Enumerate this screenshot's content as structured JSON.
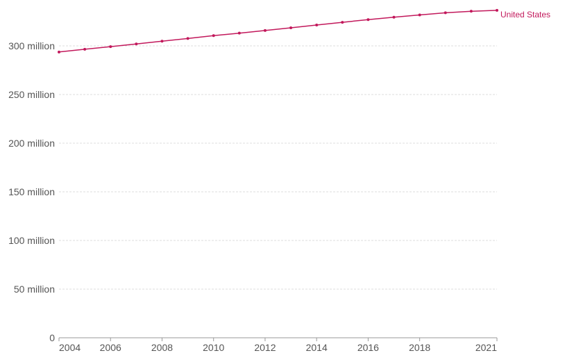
{
  "chart_data": {
    "type": "line",
    "title": "",
    "xlabel": "",
    "ylabel": "",
    "x": [
      2004,
      2005,
      2006,
      2007,
      2008,
      2009,
      2010,
      2011,
      2012,
      2013,
      2014,
      2015,
      2016,
      2017,
      2018,
      2019,
      2020,
      2021
    ],
    "series": [
      {
        "name": "United States",
        "color": "#c2185b",
        "values": [
          293.7,
          296.5,
          299.2,
          302.0,
          304.8,
          307.6,
          310.5,
          313.1,
          315.8,
          318.6,
          321.4,
          324.2,
          327.0,
          329.5,
          331.8,
          334.0,
          335.6,
          336.5
        ]
      }
    ],
    "xlim": [
      2004,
      2021
    ],
    "ylim": [
      0,
      335
    ],
    "x_ticks": [
      2004,
      2006,
      2008,
      2010,
      2012,
      2014,
      2016,
      2018,
      2021
    ],
    "x_tick_labels": [
      "2004",
      "2006",
      "2008",
      "2010",
      "2012",
      "2014",
      "2016",
      "2018",
      "2021"
    ],
    "y_ticks": [
      0,
      50,
      100,
      150,
      200,
      250,
      300
    ],
    "y_tick_labels": [
      "0",
      "50 million",
      "100 million",
      "150 million",
      "200 million",
      "250 million",
      "300 million"
    ],
    "grid": true,
    "legend": "inline label at line end"
  }
}
